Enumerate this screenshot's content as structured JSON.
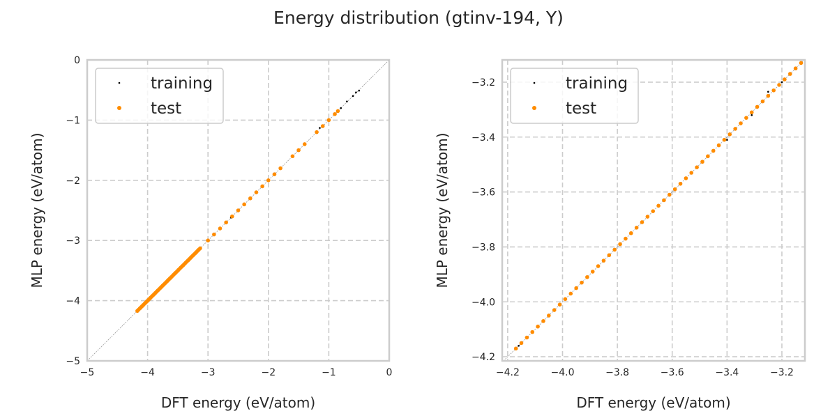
{
  "chart_data": [
    {
      "type": "scatter",
      "title": "Energy distribution (gtinv-194, Y)",
      "xlabel": "DFT energy (eV/atom)",
      "ylabel": "MLP energy (eV/atom)",
      "xlim": [
        -5,
        0
      ],
      "ylim": [
        -5,
        0
      ],
      "xticks": [
        -5,
        -4,
        -3,
        -2,
        -1,
        0
      ],
      "yticks": [
        -5,
        -4,
        -3,
        -2,
        -1,
        0
      ],
      "tick_format": 0,
      "grid": true,
      "diagonal_reference_line": true,
      "legend_position": "top-left",
      "series_ref": "shared"
    },
    {
      "type": "scatter",
      "xlabel": "DFT energy (eV/atom)",
      "ylabel": "MLP energy (eV/atom)",
      "xlim": [
        -4.22,
        -3.116
      ],
      "ylim": [
        -4.215,
        -3.119
      ],
      "xticks": [
        -4.2,
        -4.0,
        -3.8,
        -3.6,
        -3.4,
        -3.2
      ],
      "yticks": [
        -4.2,
        -4.0,
        -3.8,
        -3.6,
        -3.4,
        -3.2
      ],
      "tick_format": 1,
      "grid": true,
      "diagonal_reference_line": true,
      "legend_position": "top-left",
      "series_ref": "shared"
    }
  ],
  "series": [
    {
      "name": "training",
      "color": "#000000",
      "marker": "small-dot",
      "points": [
        [
          -4.16,
          -4.16
        ],
        [
          -4.05,
          -4.05
        ],
        [
          -3.95,
          -3.95
        ],
        [
          -3.85,
          -3.85
        ],
        [
          -3.75,
          -3.752
        ],
        [
          -3.65,
          -3.65
        ],
        [
          -3.55,
          -3.55
        ],
        [
          -3.45,
          -3.45
        ],
        [
          -3.4,
          -3.41
        ],
        [
          -3.35,
          -3.35
        ],
        [
          -3.31,
          -3.32
        ],
        [
          -3.25,
          -3.235
        ],
        [
          -3.2,
          -3.2
        ],
        [
          -3.15,
          -3.15
        ],
        [
          -3.13,
          -3.13
        ],
        [
          -3.0,
          -3.0
        ],
        [
          -2.8,
          -2.8
        ],
        [
          -2.62,
          -2.62
        ],
        [
          -2.4,
          -2.4
        ],
        [
          -2.2,
          -2.2
        ],
        [
          -2.0,
          -2.0
        ],
        [
          -1.8,
          -1.81
        ],
        [
          -1.6,
          -1.6
        ],
        [
          -1.4,
          -1.4
        ],
        [
          -1.2,
          -1.2
        ],
        [
          -1.15,
          -1.13
        ],
        [
          -1.0,
          -1.0
        ],
        [
          -0.8,
          -0.8
        ],
        [
          -0.7,
          -0.69
        ],
        [
          -0.6,
          -0.6
        ],
        [
          -0.55,
          -0.54
        ],
        [
          -0.5,
          -0.51
        ]
      ]
    },
    {
      "name": "test",
      "color": "#ff8c00",
      "marker": "dot",
      "points": [
        [
          -4.17,
          -4.17
        ],
        [
          -4.15,
          -4.15
        ],
        [
          -4.13,
          -4.13
        ],
        [
          -4.11,
          -4.11
        ],
        [
          -4.09,
          -4.09
        ],
        [
          -4.07,
          -4.07
        ],
        [
          -4.05,
          -4.05
        ],
        [
          -4.03,
          -4.03
        ],
        [
          -4.01,
          -4.01
        ],
        [
          -3.99,
          -3.99
        ],
        [
          -3.97,
          -3.97
        ],
        [
          -3.95,
          -3.95
        ],
        [
          -3.93,
          -3.93
        ],
        [
          -3.91,
          -3.91
        ],
        [
          -3.89,
          -3.89
        ],
        [
          -3.87,
          -3.87
        ],
        [
          -3.85,
          -3.85
        ],
        [
          -3.83,
          -3.83
        ],
        [
          -3.81,
          -3.81
        ],
        [
          -3.79,
          -3.79
        ],
        [
          -3.77,
          -3.77
        ],
        [
          -3.75,
          -3.75
        ],
        [
          -3.73,
          -3.73
        ],
        [
          -3.71,
          -3.71
        ],
        [
          -3.69,
          -3.69
        ],
        [
          -3.67,
          -3.67
        ],
        [
          -3.65,
          -3.65
        ],
        [
          -3.63,
          -3.63
        ],
        [
          -3.61,
          -3.61
        ],
        [
          -3.59,
          -3.59
        ],
        [
          -3.57,
          -3.57
        ],
        [
          -3.55,
          -3.55
        ],
        [
          -3.53,
          -3.53
        ],
        [
          -3.51,
          -3.51
        ],
        [
          -3.49,
          -3.49
        ],
        [
          -3.47,
          -3.47
        ],
        [
          -3.45,
          -3.45
        ],
        [
          -3.43,
          -3.43
        ],
        [
          -3.41,
          -3.41
        ],
        [
          -3.39,
          -3.39
        ],
        [
          -3.37,
          -3.37
        ],
        [
          -3.35,
          -3.35
        ],
        [
          -3.33,
          -3.33
        ],
        [
          -3.31,
          -3.31
        ],
        [
          -3.29,
          -3.29
        ],
        [
          -3.27,
          -3.27
        ],
        [
          -3.25,
          -3.25
        ],
        [
          -3.23,
          -3.23
        ],
        [
          -3.21,
          -3.21
        ],
        [
          -3.19,
          -3.19
        ],
        [
          -3.17,
          -3.17
        ],
        [
          -3.15,
          -3.15
        ],
        [
          -3.13,
          -3.13
        ],
        [
          -3.0,
          -3.0
        ],
        [
          -2.9,
          -2.9
        ],
        [
          -2.8,
          -2.8
        ],
        [
          -2.7,
          -2.7
        ],
        [
          -2.6,
          -2.6
        ],
        [
          -2.5,
          -2.5
        ],
        [
          -2.4,
          -2.4
        ],
        [
          -2.3,
          -2.3
        ],
        [
          -2.2,
          -2.2
        ],
        [
          -2.1,
          -2.1
        ],
        [
          -2.0,
          -2.0
        ],
        [
          -1.9,
          -1.9
        ],
        [
          -1.8,
          -1.8
        ],
        [
          -1.6,
          -1.6
        ],
        [
          -1.5,
          -1.5
        ],
        [
          -1.4,
          -1.4
        ],
        [
          -1.2,
          -1.2
        ],
        [
          -1.1,
          -1.1
        ],
        [
          -1.0,
          -1.0
        ],
        [
          -0.9,
          -0.9
        ],
        [
          -0.85,
          -0.85
        ]
      ]
    }
  ]
}
